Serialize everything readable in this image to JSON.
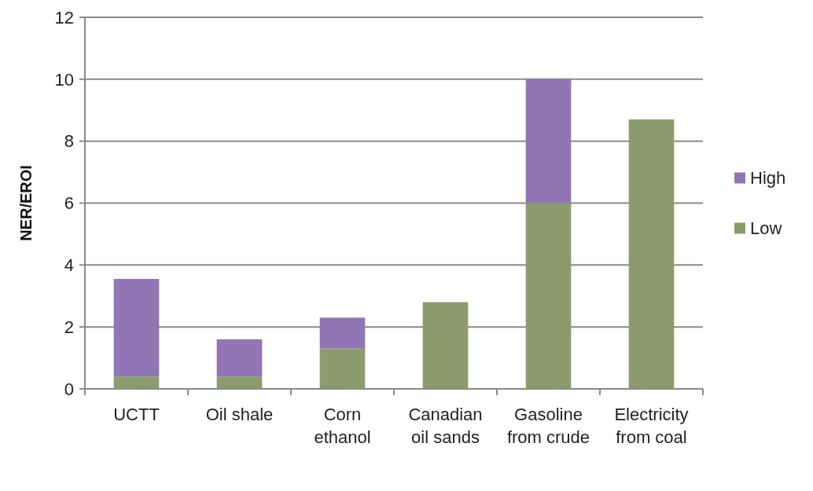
{
  "chart_data": {
    "type": "bar",
    "stacked": true,
    "ylabel": "NER/EROI",
    "categories": [
      "UCTT",
      "Oil shale",
      "Corn ethanol",
      "Canadian oil sands",
      "Gasoline from crude",
      "Electricity from coal"
    ],
    "series": [
      {
        "name": "Low",
        "color": "#8c9c6c",
        "values": [
          0.4,
          0.4,
          1.3,
          2.8,
          6.0,
          8.7
        ]
      },
      {
        "name": "High",
        "color": "#9275b5",
        "values": [
          3.15,
          1.2,
          1.0,
          0,
          4.0,
          0
        ]
      }
    ],
    "ylim": [
      0,
      12
    ],
    "yticks": [
      0,
      2,
      4,
      6,
      8,
      10,
      12
    ],
    "grid": "y",
    "legend": "right"
  }
}
